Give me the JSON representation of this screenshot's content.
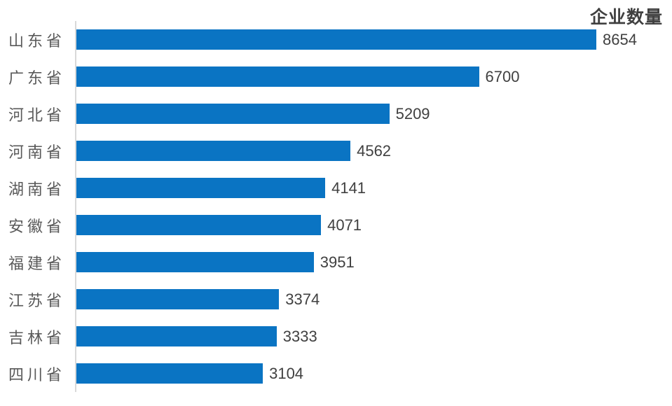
{
  "chart_data": {
    "type": "bar",
    "orientation": "horizontal",
    "title": "企业数量",
    "categories": [
      "山东省",
      "广东省",
      "河北省",
      "河南省",
      "湖南省",
      "安徽省",
      "福建省",
      "江苏省",
      "吉林省",
      "四川省"
    ],
    "values": [
      8654,
      6700,
      5209,
      4562,
      4141,
      4071,
      3951,
      3374,
      3333,
      3104
    ],
    "value_labels": [
      "8654",
      "6700",
      "5209",
      "4562",
      "4141",
      "4071",
      "3951",
      "3374",
      "3333",
      "3104"
    ],
    "xlim": [
      0,
      8654
    ],
    "grid": false,
    "legend_position": "none",
    "title_position": "top-right",
    "colors": {
      "bar": "#0A74C3",
      "axis_line": "#D9D9D9",
      "category_label": "#595959",
      "value_label": "#404040",
      "title": "#404040",
      "background": "#FFFFFF"
    }
  }
}
